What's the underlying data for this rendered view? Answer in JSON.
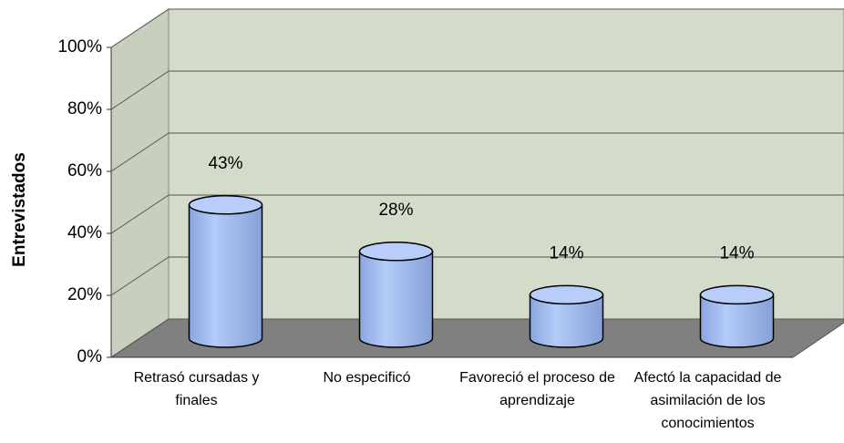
{
  "chart_data": {
    "type": "bar",
    "y_label": "Entrevistados",
    "categories": [
      "Retrasó cursadas y finales",
      "No especificó",
      "Favoreció el proceso de aprendizaje",
      "Afectó la capacidad de asimilación de los conocimientos"
    ],
    "values": [
      43,
      28,
      14,
      14
    ],
    "value_labels": [
      "43%",
      "28%",
      "14%",
      "14%"
    ],
    "color": "#a9c1f2",
    "ylim": [
      0,
      100
    ],
    "yticks": [
      {
        "value": 0,
        "label": "0%"
      },
      {
        "value": 20,
        "label": "20%"
      },
      {
        "value": 40,
        "label": "40%"
      },
      {
        "value": 60,
        "label": "60%"
      },
      {
        "value": 80,
        "label": "80%"
      },
      {
        "value": 100,
        "label": "100%"
      }
    ],
    "grid": true
  }
}
